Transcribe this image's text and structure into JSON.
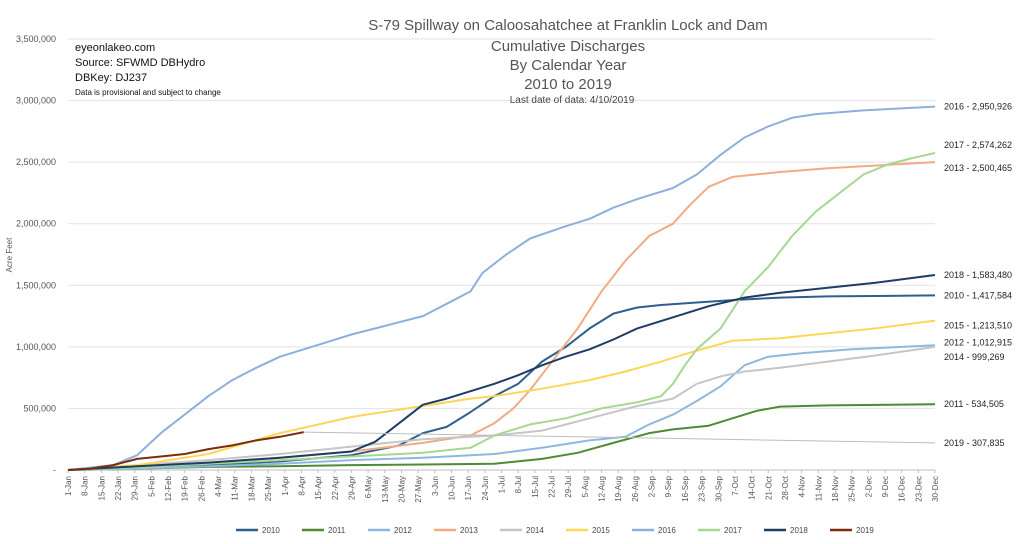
{
  "header": {
    "title_lines": [
      "S-79 Spillway on Caloosahatchee at Franklin Lock and Dam",
      "Cumulative Discharges",
      "By Calendar Year",
      "2010 to 2019"
    ],
    "last_date": "Last date of data: 4/10/2019",
    "info_lines": [
      "eyeonlakeo.com",
      "Source: SFWMD DBHydro",
      "DBKey: DJ237"
    ],
    "disclaimer": "Data is provisional and subject to change"
  },
  "chart_data": {
    "type": "line",
    "title": "S-79 Spillway on Caloosahatchee at Franklin Lock and Dam",
    "ylabel": "Acre Feet",
    "xlabel": "",
    "ylim": [
      0,
      3500000
    ],
    "x_range_days": [
      1,
      365
    ],
    "y_ticks": [
      "-",
      "500,000",
      "1,000,000",
      "1,500,000",
      "2,000,000",
      "2,500,000",
      "3,000,000",
      "3,500,000"
    ],
    "x_ticks": [
      "1-Jan",
      "8-Jan",
      "15-Jan",
      "22-Jan",
      "29-Jan",
      "5-Feb",
      "12-Feb",
      "19-Feb",
      "26-Feb",
      "4-Mar",
      "11-Mar",
      "18-Mar",
      "25-Mar",
      "1-Apr",
      "8-Apr",
      "15-Apr",
      "22-Apr",
      "29-Apr",
      "6-May",
      "13-May",
      "20-May",
      "27-May",
      "3-Jun",
      "10-Jun",
      "17-Jun",
      "24-Jun",
      "1-Jul",
      "8-Jul",
      "15-Jul",
      "22-Jul",
      "29-Jul",
      "5-Aug",
      "12-Aug",
      "19-Aug",
      "26-Aug",
      "2-Sep",
      "9-Sep",
      "16-Sep",
      "23-Sep",
      "30-Sep",
      "7-Oct",
      "14-Oct",
      "21-Oct",
      "28-Oct",
      "4-Nov",
      "11-Nov",
      "18-Nov",
      "25-Nov",
      "2-Dec",
      "9-Dec",
      "16-Dec",
      "23-Dec",
      "30-Dec"
    ],
    "grid": true,
    "legend_position": "bottom",
    "series": [
      {
        "name": "2010",
        "color": "#2e5f8f",
        "width": 2,
        "end_label": "2010 - 1,417,584",
        "points": [
          [
            1,
            0
          ],
          [
            15,
            10000
          ],
          [
            30,
            20000
          ],
          [
            60,
            40000
          ],
          [
            90,
            70000
          ],
          [
            120,
            120000
          ],
          [
            140,
            200000
          ],
          [
            150,
            300000
          ],
          [
            160,
            350000
          ],
          [
            170,
            470000
          ],
          [
            180,
            600000
          ],
          [
            190,
            700000
          ],
          [
            200,
            880000
          ],
          [
            210,
            1000000
          ],
          [
            220,
            1150000
          ],
          [
            230,
            1270000
          ],
          [
            240,
            1320000
          ],
          [
            250,
            1340000
          ],
          [
            265,
            1360000
          ],
          [
            280,
            1380000
          ],
          [
            300,
            1400000
          ],
          [
            320,
            1410000
          ],
          [
            365,
            1417584
          ]
        ]
      },
      {
        "name": "2011",
        "color": "#4e8b34",
        "width": 2,
        "end_label": "2011 - 534,505",
        "points": [
          [
            1,
            0
          ],
          [
            30,
            10000
          ],
          [
            60,
            25000
          ],
          [
            90,
            30000
          ],
          [
            120,
            40000
          ],
          [
            150,
            45000
          ],
          [
            180,
            50000
          ],
          [
            200,
            90000
          ],
          [
            215,
            140000
          ],
          [
            230,
            220000
          ],
          [
            245,
            300000
          ],
          [
            255,
            330000
          ],
          [
            270,
            360000
          ],
          [
            280,
            420000
          ],
          [
            290,
            480000
          ],
          [
            300,
            515000
          ],
          [
            320,
            525000
          ],
          [
            365,
            534505
          ]
        ]
      },
      {
        "name": "2012",
        "color": "#8fb8de",
        "width": 2,
        "end_label": "2012 - 1,012,915",
        "points": [
          [
            1,
            0
          ],
          [
            30,
            10000
          ],
          [
            60,
            30000
          ],
          [
            90,
            50000
          ],
          [
            120,
            80000
          ],
          [
            150,
            100000
          ],
          [
            180,
            130000
          ],
          [
            200,
            180000
          ],
          [
            220,
            240000
          ],
          [
            235,
            270000
          ],
          [
            245,
            370000
          ],
          [
            255,
            450000
          ],
          [
            265,
            560000
          ],
          [
            275,
            680000
          ],
          [
            285,
            850000
          ],
          [
            295,
            920000
          ],
          [
            310,
            950000
          ],
          [
            330,
            980000
          ],
          [
            365,
            1012915
          ]
        ]
      },
      {
        "name": "2013",
        "color": "#f2ab83",
        "width": 2,
        "end_label": "2013 - 2,500,465",
        "points": [
          [
            1,
            0
          ],
          [
            30,
            30000
          ],
          [
            60,
            60000
          ],
          [
            90,
            100000
          ],
          [
            120,
            150000
          ],
          [
            150,
            220000
          ],
          [
            170,
            280000
          ],
          [
            180,
            380000
          ],
          [
            188,
            500000
          ],
          [
            195,
            650000
          ],
          [
            205,
            900000
          ],
          [
            215,
            1150000
          ],
          [
            225,
            1450000
          ],
          [
            235,
            1700000
          ],
          [
            245,
            1900000
          ],
          [
            255,
            2000000
          ],
          [
            262,
            2150000
          ],
          [
            270,
            2300000
          ],
          [
            280,
            2380000
          ],
          [
            300,
            2420000
          ],
          [
            320,
            2450000
          ],
          [
            365,
            2500465
          ]
        ]
      },
      {
        "name": "2014",
        "color": "#c6c6c6",
        "width": 2,
        "end_label": "2014 - 999,269",
        "points": [
          [
            1,
            0
          ],
          [
            30,
            40000
          ],
          [
            60,
            80000
          ],
          [
            90,
            130000
          ],
          [
            120,
            190000
          ],
          [
            150,
            250000
          ],
          [
            180,
            280000
          ],
          [
            200,
            320000
          ],
          [
            220,
            420000
          ],
          [
            240,
            520000
          ],
          [
            255,
            580000
          ],
          [
            265,
            700000
          ],
          [
            275,
            760000
          ],
          [
            285,
            800000
          ],
          [
            300,
            830000
          ],
          [
            320,
            880000
          ],
          [
            340,
            930000
          ],
          [
            365,
            999269
          ]
        ]
      },
      {
        "name": "2015",
        "color": "#ffd65a",
        "width": 2,
        "end_label": "2015 - 1,213,510",
        "points": [
          [
            1,
            0
          ],
          [
            30,
            40000
          ],
          [
            60,
            130000
          ],
          [
            90,
            300000
          ],
          [
            120,
            430000
          ],
          [
            150,
            520000
          ],
          [
            170,
            580000
          ],
          [
            180,
            600000
          ],
          [
            200,
            660000
          ],
          [
            220,
            730000
          ],
          [
            235,
            800000
          ],
          [
            250,
            880000
          ],
          [
            265,
            970000
          ],
          [
            280,
            1050000
          ],
          [
            300,
            1070000
          ],
          [
            320,
            1110000
          ],
          [
            340,
            1150000
          ],
          [
            365,
            1213510
          ]
        ]
      },
      {
        "name": "2016",
        "color": "#8eafdc",
        "width": 2,
        "end_label": "2016 - 2,950,926",
        "points": [
          [
            1,
            0
          ],
          [
            20,
            40000
          ],
          [
            30,
            120000
          ],
          [
            40,
            300000
          ],
          [
            50,
            450000
          ],
          [
            60,
            600000
          ],
          [
            70,
            730000
          ],
          [
            80,
            830000
          ],
          [
            90,
            920000
          ],
          [
            100,
            980000
          ],
          [
            110,
            1040000
          ],
          [
            120,
            1100000
          ],
          [
            130,
            1150000
          ],
          [
            140,
            1200000
          ],
          [
            150,
            1250000
          ],
          [
            160,
            1350000
          ],
          [
            170,
            1450000
          ],
          [
            175,
            1600000
          ],
          [
            185,
            1750000
          ],
          [
            195,
            1880000
          ],
          [
            210,
            1980000
          ],
          [
            220,
            2040000
          ],
          [
            230,
            2130000
          ],
          [
            240,
            2200000
          ],
          [
            255,
            2290000
          ],
          [
            265,
            2400000
          ],
          [
            275,
            2560000
          ],
          [
            285,
            2700000
          ],
          [
            295,
            2790000
          ],
          [
            305,
            2860000
          ],
          [
            315,
            2890000
          ],
          [
            335,
            2920000
          ],
          [
            365,
            2950926
          ]
        ]
      },
      {
        "name": "2017",
        "color": "#a7d790",
        "width": 2,
        "end_label": "2017 - 2,574,262",
        "points": [
          [
            1,
            0
          ],
          [
            30,
            20000
          ],
          [
            60,
            50000
          ],
          [
            90,
            80000
          ],
          [
            120,
            110000
          ],
          [
            150,
            140000
          ],
          [
            170,
            180000
          ],
          [
            180,
            280000
          ],
          [
            195,
            370000
          ],
          [
            210,
            420000
          ],
          [
            225,
            500000
          ],
          [
            240,
            550000
          ],
          [
            250,
            600000
          ],
          [
            255,
            700000
          ],
          [
            260,
            850000
          ],
          [
            265,
            980000
          ],
          [
            275,
            1150000
          ],
          [
            285,
            1450000
          ],
          [
            295,
            1650000
          ],
          [
            305,
            1900000
          ],
          [
            315,
            2100000
          ],
          [
            325,
            2250000
          ],
          [
            335,
            2400000
          ],
          [
            345,
            2480000
          ],
          [
            355,
            2530000
          ],
          [
            365,
            2574262
          ]
        ]
      },
      {
        "name": "2018",
        "color": "#1f3c64",
        "width": 2,
        "end_label": "2018 - 1,583,480",
        "points": [
          [
            1,
            0
          ],
          [
            30,
            30000
          ],
          [
            60,
            60000
          ],
          [
            90,
            100000
          ],
          [
            120,
            150000
          ],
          [
            130,
            230000
          ],
          [
            140,
            380000
          ],
          [
            150,
            530000
          ],
          [
            160,
            580000
          ],
          [
            170,
            640000
          ],
          [
            180,
            700000
          ],
          [
            190,
            770000
          ],
          [
            200,
            850000
          ],
          [
            210,
            920000
          ],
          [
            220,
            980000
          ],
          [
            230,
            1060000
          ],
          [
            240,
            1150000
          ],
          [
            255,
            1240000
          ],
          [
            270,
            1330000
          ],
          [
            285,
            1400000
          ],
          [
            300,
            1440000
          ],
          [
            320,
            1480000
          ],
          [
            340,
            1520000
          ],
          [
            365,
            1583480
          ]
        ]
      },
      {
        "name": "2019",
        "color": "#7b2d0f",
        "width": 2,
        "end_label": "2019 - 307,835",
        "points": [
          [
            1,
            0
          ],
          [
            10,
            10000
          ],
          [
            20,
            40000
          ],
          [
            30,
            90000
          ],
          [
            40,
            110000
          ],
          [
            50,
            130000
          ],
          [
            60,
            170000
          ],
          [
            70,
            200000
          ],
          [
            80,
            240000
          ],
          [
            90,
            270000
          ],
          [
            100,
            307835
          ]
        ]
      }
    ]
  }
}
